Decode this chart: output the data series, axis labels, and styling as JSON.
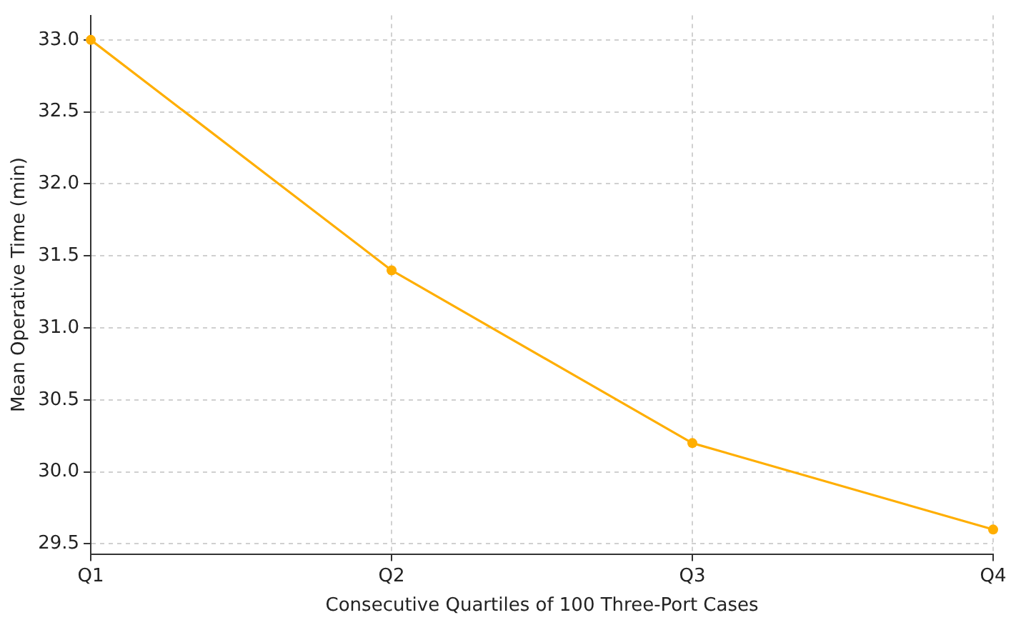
{
  "chart_data": {
    "type": "line",
    "xlabel": "Consecutive Quartiles of 100 Three-Port Cases",
    "ylabel": "Mean Operative Time (min)",
    "categories": [
      "Q1",
      "Q2",
      "Q3",
      "Q4"
    ],
    "series": [
      {
        "color": "#ffae00",
        "values": [
          33.0,
          31.4,
          30.2,
          29.6
        ]
      }
    ],
    "ylim": [
      29.43,
      33.17
    ],
    "yticks": [
      {
        "value": 29.5,
        "label": "29.5"
      },
      {
        "value": 30,
        "label": "30.0"
      },
      {
        "value": 30.5,
        "label": "30.5"
      },
      {
        "value": 31,
        "label": "31.0"
      },
      {
        "value": 31.5,
        "label": "31.5"
      },
      {
        "value": 32,
        "label": "32.0"
      },
      {
        "value": 32.5,
        "label": "32.5"
      },
      {
        "value": 33,
        "label": "33.0"
      }
    ],
    "grid": true,
    "legend": false,
    "marker": "circle",
    "line_style": "solid"
  }
}
